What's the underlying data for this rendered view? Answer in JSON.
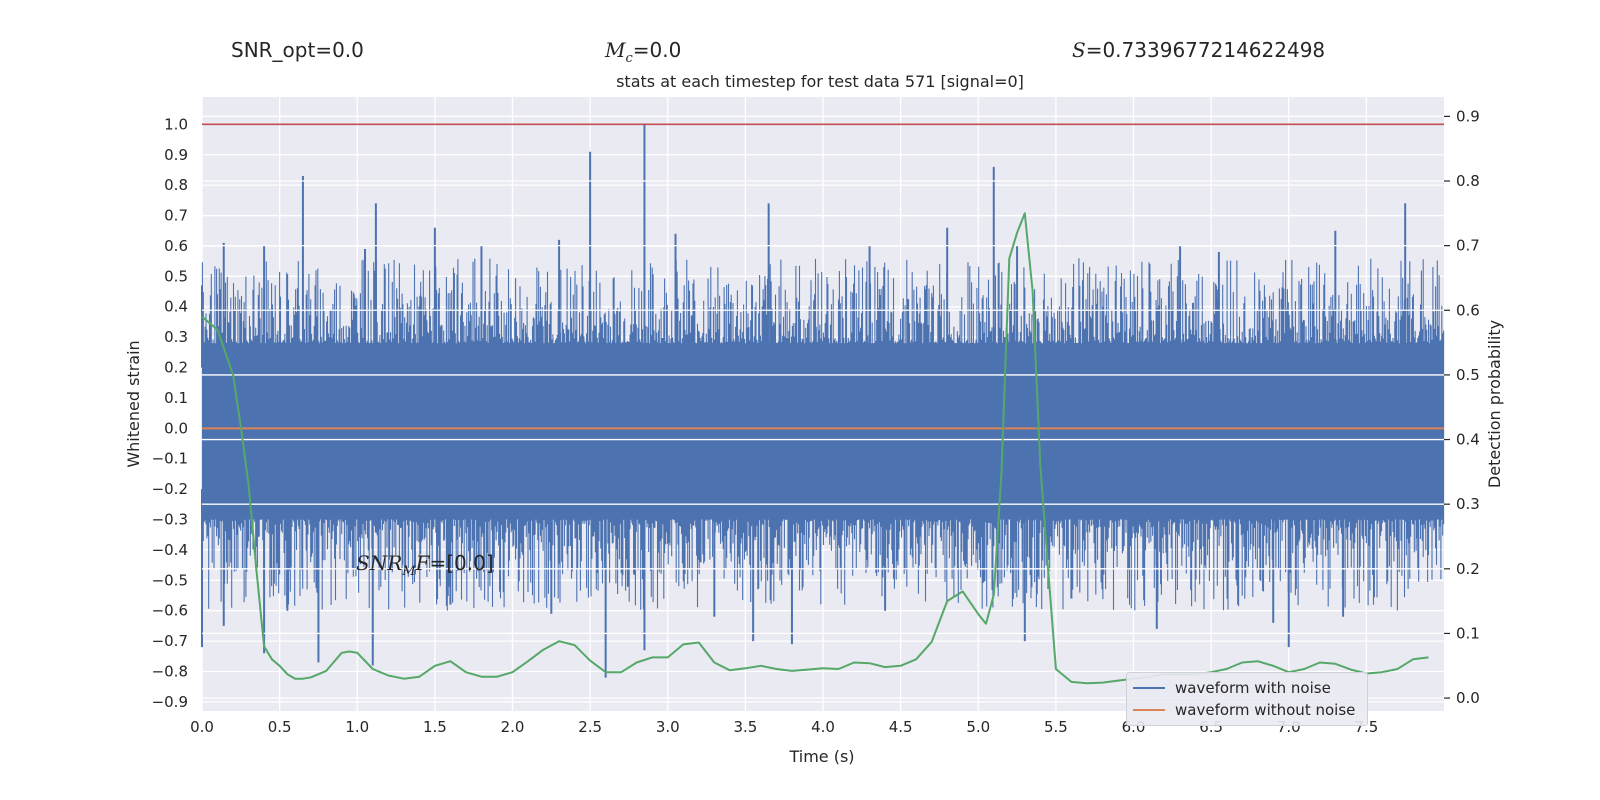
{
  "header": {
    "snr_opt": "SNR_opt=0.0",
    "mc_value": "=0.0",
    "s_value": "=0.7339677214622498"
  },
  "chart_data": {
    "type": "line",
    "title": "stats at each timestep for test data 571 [signal=0]",
    "xlabel": "Time (s)",
    "ylabel_left": "Whitened strain",
    "ylabel_right": "Detection probability",
    "xlim": [
      0.0,
      8.0
    ],
    "ylim_left": [
      -0.93,
      1.09
    ],
    "ylim_right": [
      -0.02,
      0.93
    ],
    "xticks": [
      "0.0",
      "0.5",
      "1.0",
      "1.5",
      "2.0",
      "2.5",
      "3.0",
      "3.5",
      "4.0",
      "4.5",
      "5.0",
      "5.5",
      "6.0",
      "6.5",
      "7.0",
      "7.5"
    ],
    "yticks_left": [
      "1.0",
      "0.9",
      "0.8",
      "0.7",
      "0.6",
      "0.5",
      "0.4",
      "0.3",
      "0.2",
      "0.1",
      "0.0",
      "−0.1",
      "−0.2",
      "−0.3",
      "−0.4",
      "−0.5",
      "−0.6",
      "−0.7",
      "−0.8",
      "−0.9"
    ],
    "yticks_right": [
      "0.9",
      "0.8",
      "0.7",
      "0.6",
      "0.5",
      "0.4",
      "0.3",
      "0.2",
      "0.1",
      "0.0"
    ],
    "annotation": "=[0.0]",
    "threshold_line": {
      "value": 1.0,
      "color": "#c44e52"
    },
    "series": [
      {
        "name": "waveform with noise",
        "color": "#4c72b0",
        "band": [
          -0.27,
          0.2
        ],
        "peaks_up": [
          [
            0.0,
            0.47
          ],
          [
            0.14,
            0.61
          ],
          [
            0.4,
            0.6
          ],
          [
            0.65,
            0.83
          ],
          [
            1.05,
            0.59
          ],
          [
            1.12,
            0.74
          ],
          [
            1.5,
            0.66
          ],
          [
            1.8,
            0.6
          ],
          [
            2.3,
            0.62
          ],
          [
            2.5,
            0.91
          ],
          [
            2.85,
            1.0
          ],
          [
            3.05,
            0.64
          ],
          [
            3.65,
            0.74
          ],
          [
            4.3,
            0.6
          ],
          [
            4.8,
            0.66
          ],
          [
            5.1,
            0.86
          ],
          [
            5.25,
            0.6
          ],
          [
            6.3,
            0.6
          ],
          [
            6.55,
            0.58
          ],
          [
            7.3,
            0.65
          ],
          [
            7.75,
            0.74
          ]
        ],
        "peaks_down": [
          [
            0.0,
            -0.72
          ],
          [
            0.14,
            -0.65
          ],
          [
            0.4,
            -0.74
          ],
          [
            0.55,
            -0.6
          ],
          [
            0.75,
            -0.77
          ],
          [
            1.1,
            -0.78
          ],
          [
            1.6,
            -0.58
          ],
          [
            2.25,
            -0.61
          ],
          [
            2.6,
            -0.82
          ],
          [
            2.85,
            -0.73
          ],
          [
            3.3,
            -0.62
          ],
          [
            3.55,
            -0.7
          ],
          [
            3.8,
            -0.71
          ],
          [
            4.4,
            -0.6
          ],
          [
            5.3,
            -0.7
          ],
          [
            5.6,
            -0.56
          ],
          [
            6.15,
            -0.66
          ],
          [
            6.9,
            -0.64
          ],
          [
            7.0,
            -0.72
          ],
          [
            7.35,
            -0.62
          ]
        ]
      },
      {
        "name": "waveform without noise",
        "color": "#dd8452",
        "value": 0.0
      },
      {
        "name": "detection probability",
        "color": "#55a868",
        "axis": "right",
        "x": [
          0.0,
          0.1,
          0.2,
          0.25,
          0.3,
          0.35,
          0.4,
          0.45,
          0.5,
          0.55,
          0.6,
          0.65,
          0.7,
          0.8,
          0.9,
          0.95,
          1.0,
          1.1,
          1.2,
          1.3,
          1.4,
          1.5,
          1.6,
          1.7,
          1.8,
          1.9,
          2.0,
          2.1,
          2.2,
          2.3,
          2.4,
          2.5,
          2.6,
          2.7,
          2.8,
          2.9,
          3.0,
          3.1,
          3.2,
          3.3,
          3.4,
          3.5,
          3.6,
          3.7,
          3.8,
          3.9,
          4.0,
          4.1,
          4.2,
          4.3,
          4.4,
          4.5,
          4.6,
          4.7,
          4.8,
          4.9,
          5.0,
          5.05,
          5.1,
          5.15,
          5.2,
          5.25,
          5.3,
          5.35,
          5.4,
          5.45,
          5.5,
          5.6,
          5.7,
          5.8,
          5.9,
          6.0,
          6.1,
          6.2,
          6.3,
          6.4,
          6.5,
          6.6,
          6.7,
          6.8,
          6.9,
          7.0,
          7.1,
          7.2,
          7.3,
          7.4,
          7.5,
          7.6,
          7.7,
          7.8,
          7.9
        ],
        "y": [
          0.59,
          0.57,
          0.5,
          0.42,
          0.33,
          0.2,
          0.08,
          0.06,
          0.05,
          0.037,
          0.03,
          0.03,
          0.032,
          0.042,
          0.07,
          0.072,
          0.07,
          0.045,
          0.035,
          0.03,
          0.033,
          0.05,
          0.057,
          0.04,
          0.033,
          0.033,
          0.04,
          0.057,
          0.075,
          0.088,
          0.082,
          0.058,
          0.04,
          0.04,
          0.055,
          0.063,
          0.063,
          0.083,
          0.086,
          0.055,
          0.043,
          0.046,
          0.05,
          0.045,
          0.042,
          0.044,
          0.046,
          0.045,
          0.055,
          0.054,
          0.048,
          0.05,
          0.06,
          0.087,
          0.15,
          0.165,
          0.13,
          0.115,
          0.16,
          0.35,
          0.68,
          0.72,
          0.75,
          0.63,
          0.36,
          0.2,
          0.045,
          0.025,
          0.023,
          0.024,
          0.027,
          0.03,
          0.033,
          0.037,
          0.037,
          0.037,
          0.04,
          0.045,
          0.055,
          0.057,
          0.05,
          0.04,
          0.045,
          0.055,
          0.053,
          0.044,
          0.038,
          0.04,
          0.045,
          0.06,
          0.063
        ]
      }
    ]
  }
}
